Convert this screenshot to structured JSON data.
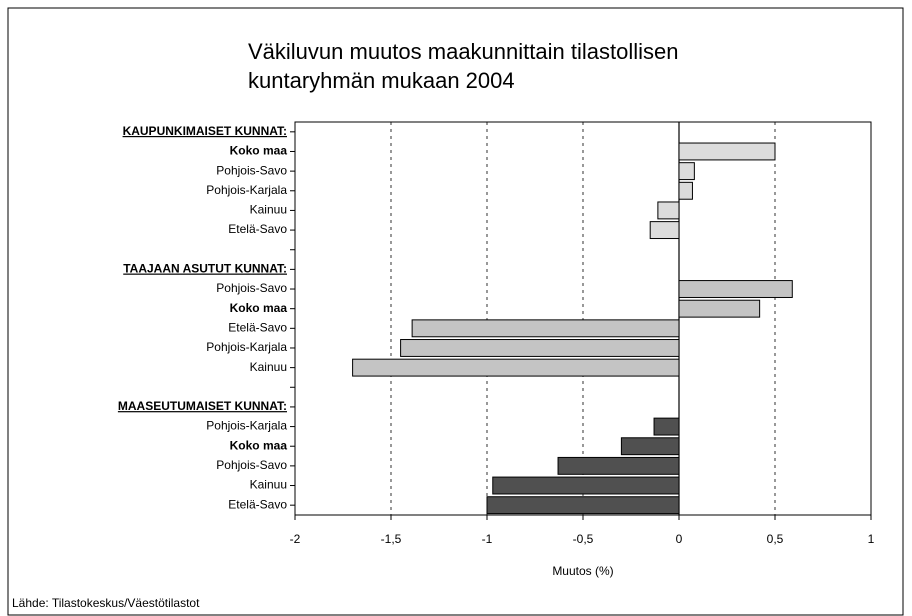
{
  "chart_data": {
    "type": "barh",
    "title_lines": [
      "Väkiluvun muutos maakunnittain tilastollisen",
      "kuntaryhmän mukaan 2004"
    ],
    "x_label": "Muutos (%)",
    "source": "Lähde: Tilastokeskus/Väestötilastot",
    "categories": [
      "KAUPUNKIMAISET KUNNAT:",
      "Koko maa",
      "Pohjois-Savo",
      "Pohjois-Karjala",
      "Kainuu",
      "Etelä-Savo",
      null,
      "TAAJAAN ASUTUT KUNNAT:",
      "Pohjois-Savo",
      "Koko maa",
      "Etelä-Savo",
      "Pohjois-Karjala",
      "Kainuu",
      null,
      "MAASEUTUMAISET KUNNAT:",
      "Pohjois-Karjala",
      "Koko maa",
      "Pohjois-Savo",
      "Kainuu",
      "Etelä-Savo"
    ],
    "bold": [
      0,
      1,
      7,
      9,
      14,
      16
    ],
    "underline": [
      0,
      7,
      14
    ],
    "series": [
      {
        "color": "#dcdcdc",
        "values": [
          null,
          0.5,
          0.08,
          0.07,
          -0.11,
          -0.15,
          null,
          null,
          null,
          null,
          null,
          null,
          null,
          null,
          null,
          null,
          null,
          null,
          null,
          null
        ]
      },
      {
        "color": "#c4c4c4",
        "values": [
          null,
          null,
          null,
          null,
          null,
          null,
          null,
          null,
          0.59,
          0.42,
          -1.39,
          -1.45,
          -1.7,
          null,
          null,
          null,
          null,
          null,
          null,
          null
        ]
      },
      {
        "color": "#505050",
        "values": [
          null,
          null,
          null,
          null,
          null,
          null,
          null,
          null,
          null,
          null,
          null,
          null,
          null,
          null,
          null,
          -0.13,
          -0.3,
          -0.63,
          -0.97,
          -1.0
        ]
      }
    ],
    "xlim": [
      -2,
      1
    ],
    "xticks": [
      -2,
      {
        "value": -1.5,
        "label": "-1,5"
      },
      -1,
      {
        "value": -0.5,
        "label": "-0,5"
      },
      0,
      {
        "value": 0.5,
        "label": "0,5"
      },
      1
    ],
    "grid": true
  }
}
